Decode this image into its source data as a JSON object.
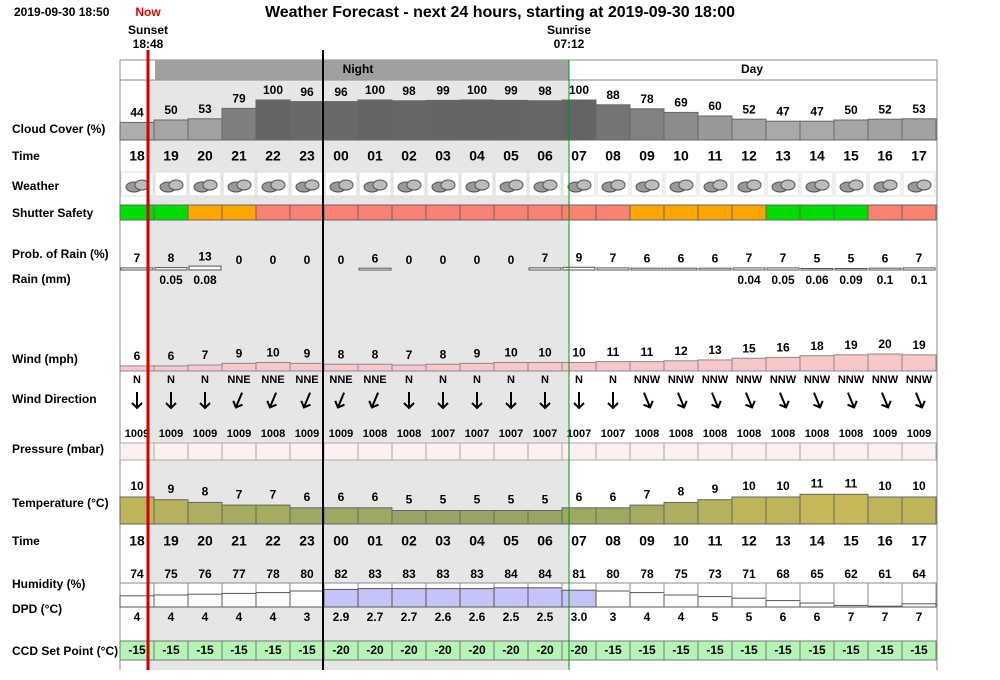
{
  "header": {
    "timestamp": "2019-09-30 18:50",
    "now": "Now",
    "title": "Weather Forecast - next 24 hours, starting at 2019-09-30 18:00",
    "sunset": {
      "label": "Sunset",
      "time": "18:48"
    },
    "sunrise": {
      "label": "Sunrise",
      "time": "07:12"
    },
    "night": "Night",
    "day": "Day"
  },
  "row_labels": {
    "cloud_cover": "Cloud Cover (%)",
    "time": "Time",
    "weather": "Weather",
    "shutter": "Shutter Safety",
    "rain_prob": "Prob. of Rain (%)",
    "rain_mm": "Rain (mm)",
    "wind": "Wind (mph)",
    "wind_dir": "Wind Direction",
    "pressure": "Pressure (mbar)",
    "temperature": "Temperature (°C)",
    "humidity": "Humidity (%)",
    "dpd": "DPD (°C)",
    "ccd": "CCD Set Point (°C)"
  },
  "hours": [
    "18",
    "19",
    "20",
    "21",
    "22",
    "23",
    "00",
    "01",
    "02",
    "03",
    "04",
    "05",
    "06",
    "07",
    "08",
    "09",
    "10",
    "11",
    "12",
    "13",
    "14",
    "15",
    "16",
    "17"
  ],
  "cloud_cover": [
    44,
    50,
    53,
    79,
    100,
    96,
    96,
    100,
    98,
    99,
    100,
    99,
    98,
    100,
    88,
    78,
    69,
    60,
    52,
    47,
    47,
    50,
    52,
    53
  ],
  "shutter_colors": [
    "#00dd00",
    "#00dd00",
    "#ffa500",
    "#ffa500",
    "#fa8072",
    "#fa8072",
    "#fa8072",
    "#fa8072",
    "#fa8072",
    "#fa8072",
    "#fa8072",
    "#fa8072",
    "#fa8072",
    "#fa8072",
    "#fa8072",
    "#ffa500",
    "#ffa500",
    "#ffa500",
    "#ffa500",
    "#00dd00",
    "#00dd00",
    "#00dd00",
    "#fa8072",
    "#fa8072"
  ],
  "rain_prob": [
    7,
    8,
    13,
    0,
    0,
    0,
    0,
    6,
    0,
    0,
    0,
    0,
    7,
    9,
    7,
    6,
    6,
    6,
    7,
    7,
    5,
    5,
    6,
    7
  ],
  "rain_mm": [
    null,
    0.05,
    0.08,
    null,
    null,
    null,
    null,
    null,
    null,
    null,
    null,
    null,
    null,
    null,
    null,
    null,
    null,
    null,
    0.04,
    0.05,
    0.06,
    0.09,
    0.1,
    0.1
  ],
  "wind": [
    6,
    6,
    7,
    9,
    10,
    9,
    8,
    8,
    7,
    8,
    9,
    10,
    10,
    10,
    11,
    11,
    12,
    13,
    15,
    16,
    18,
    19,
    20,
    19
  ],
  "wind_dir": [
    "N",
    "N",
    "N",
    "NNE",
    "NNE",
    "NNE",
    "NNE",
    "NNE",
    "N",
    "N",
    "N",
    "N",
    "N",
    "N",
    "N",
    "NNW",
    "NNW",
    "NNW",
    "NNW",
    "NNW",
    "NNW",
    "NNW",
    "NNW",
    "NNW"
  ],
  "pressure": [
    1009,
    1009,
    1009,
    1009,
    1008,
    1009,
    1009,
    1008,
    1008,
    1007,
    1007,
    1007,
    1007,
    1007,
    1007,
    1008,
    1008,
    1008,
    1008,
    1008,
    1008,
    1008,
    1009,
    1009
  ],
  "temperature": [
    10,
    9,
    8,
    7,
    7,
    6,
    6,
    6,
    5,
    5,
    5,
    5,
    5,
    6,
    6,
    7,
    8,
    9,
    10,
    10,
    11,
    11,
    10,
    10
  ],
  "humidity": [
    74,
    75,
    76,
    77,
    78,
    80,
    82,
    83,
    83,
    83,
    83,
    84,
    84,
    81,
    80,
    78,
    75,
    73,
    71,
    68,
    65,
    62,
    61,
    64
  ],
  "dpd": [
    "4",
    "4",
    "4",
    "4",
    "4",
    "3",
    "2.9",
    "2.7",
    "2.7",
    "2.6",
    "2.6",
    "2.5",
    "2.5",
    "3.0",
    "3",
    "4",
    "4",
    "5",
    "5",
    "6",
    "6",
    "7",
    "7",
    "7"
  ],
  "ccd": [
    -15,
    -15,
    -15,
    -15,
    -15,
    -15,
    -20,
    -20,
    -20,
    -20,
    -20,
    -20,
    -20,
    -20,
    -15,
    -15,
    -15,
    -15,
    -15,
    -15,
    -15,
    -15,
    -15,
    -15
  ]
}
